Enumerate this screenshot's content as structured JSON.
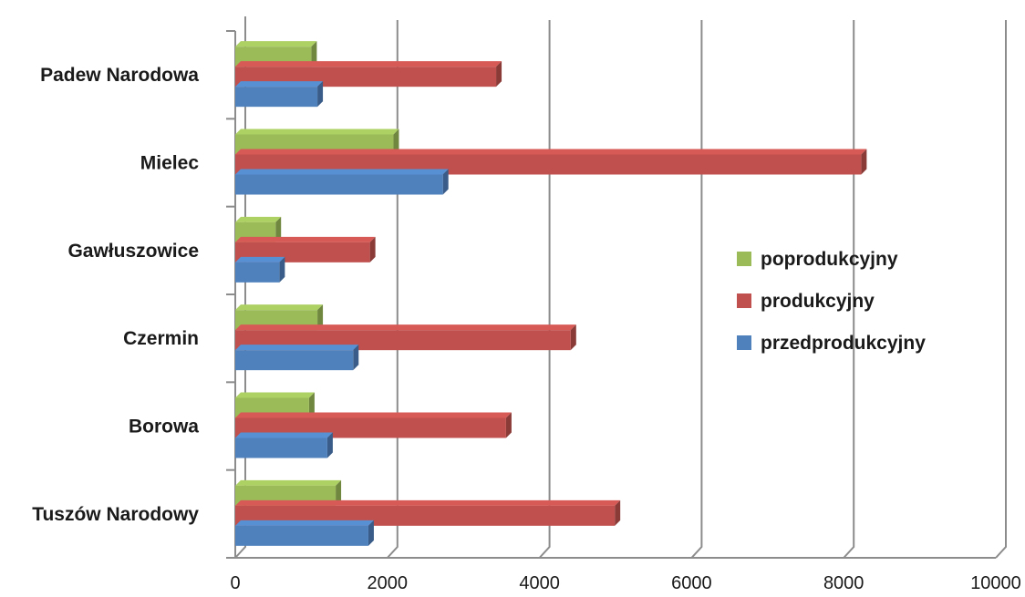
{
  "chart_data": {
    "type": "bar",
    "orientation": "horizontal",
    "style": "3d-clustered-bar",
    "title": "",
    "xlabel": "",
    "ylabel": "",
    "xlim": [
      0,
      10000
    ],
    "xticks": [
      0,
      2000,
      4000,
      6000,
      8000,
      10000
    ],
    "xtick_labels": [
      "0",
      "2000",
      "4000",
      "6000",
      "8000",
      "10000"
    ],
    "grid": true,
    "legend_position": "right",
    "categories": [
      "Padew Narodowa",
      "Mielec",
      "Gawłuszowice",
      "Czermin",
      "Borowa",
      "Tuszów Narodowy"
    ],
    "series": [
      {
        "name": "poprodukcyjny",
        "color": "#9BBB59",
        "values": [
          1000,
          2080,
          530,
          1080,
          970,
          1320
        ]
      },
      {
        "name": "produkcyjny",
        "color": "#C0504D",
        "values": [
          3430,
          8230,
          1770,
          4410,
          3560,
          4990
        ]
      },
      {
        "name": "przedprodukcyjny",
        "color": "#4F81BD",
        "values": [
          1080,
          2730,
          580,
          1550,
          1210,
          1750
        ]
      }
    ],
    "legend_order": [
      "poprodukcyjny",
      "produkcyjny",
      "przedprodukcyjny"
    ]
  }
}
